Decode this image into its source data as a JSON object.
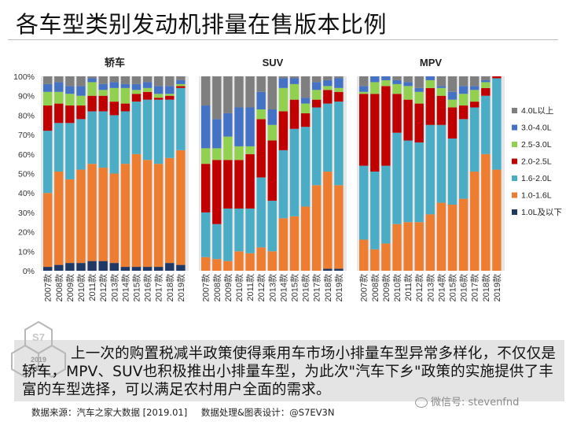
{
  "page_title": "各车型类别发动机排量在售版本比例",
  "note": "上一次的购置税减半政策使得乘用车市场小排量车型异常多样化，不仅仅是轿车，MPV、SUV也积极推出小排量车型，为此次\"汽车下乡\"政策的实施提供了丰富的车型选择，可以满足农村用户全面的需求。",
  "source": "数据来源：汽车之家大数据 [2019.01]",
  "processing": "数据处理&图表设计：@S7EV3N",
  "watermark": "微信号: stevenfnd",
  "seal": {
    "year": "2019",
    "date": "0129"
  },
  "colors": {
    "4.0L以上": "#7f7f7f",
    "3.0-4.0L": "#4472c4",
    "2.5-3.0L": "#92d050",
    "2.0-2.5L": "#c00000",
    "1.6-2.0L": "#4bacc6",
    "1.0-1.6L": "#ed7d31",
    "1.0L及以下": "#1f3864"
  },
  "chart_data": {
    "type": "bar",
    "stacked": true,
    "ylim": [
      0,
      100
    ],
    "yticks": [
      "0%",
      "10%",
      "20%",
      "30%",
      "40%",
      "50%",
      "60%",
      "70%",
      "80%",
      "90%",
      "100%"
    ],
    "categories": [
      "2007款",
      "2008款",
      "2009款",
      "2010款",
      "2011款",
      "2012款",
      "2013款",
      "2014款",
      "2015款",
      "2016款",
      "2017款",
      "2018款",
      "2019款"
    ],
    "legend": [
      "4.0L以上",
      "3.0-4.0L",
      "2.5-3.0L",
      "2.0-2.5L",
      "1.6-2.0L",
      "1.0-1.6L",
      "1.0L及以下"
    ],
    "legend_position": "right",
    "panels": [
      {
        "name": "轿车",
        "series": [
          {
            "name": "1.0L及以下",
            "values": [
              2,
              3,
              4,
              4,
              5,
              5,
              4,
              2,
              2,
              2,
              2,
              4,
              3
            ]
          },
          {
            "name": "1.0-1.6L",
            "values": [
              38,
              48,
              43,
              48,
              50,
              48,
              46,
              53,
              58,
              55,
              53,
              54,
              59
            ]
          },
          {
            "name": "1.6-2.0L",
            "values": [
              32,
              25,
              29,
              26,
              27,
              29,
              30,
              27,
              27,
              31,
              33,
              30,
              32
            ]
          },
          {
            "name": "2.0-2.5L",
            "values": [
              13,
              10,
              9,
              7,
              8,
              8,
              7,
              4,
              4,
              4,
              1,
              2,
              1
            ]
          },
          {
            "name": "2.5-3.0L",
            "values": [
              7,
              6,
              6,
              5,
              7,
              3,
              7,
              8,
              2,
              2,
              2,
              1,
              1
            ]
          },
          {
            "name": "3.0-4.0L",
            "values": [
              4,
              5,
              4,
              5,
              2,
              3,
              3,
              2,
              3,
              3,
              4,
              4,
              2
            ]
          },
          {
            "name": "4.0L以上",
            "values": [
              4,
              3,
              5,
              5,
              1,
              4,
              3,
              4,
              4,
              3,
              5,
              5,
              2
            ]
          }
        ]
      },
      {
        "name": "SUV",
        "series": [
          {
            "name": "1.0L及以下",
            "values": [
              0,
              0,
              0,
              0,
              0,
              0,
              0,
              0,
              0,
              0,
              0,
              1,
              1
            ]
          },
          {
            "name": "1.0-1.6L",
            "values": [
              7,
              6,
              5,
              10,
              9,
              12,
              10,
              27,
              28,
              33,
              44,
              50,
              43
            ]
          },
          {
            "name": "1.6-2.0L",
            "values": [
              23,
              18,
              27,
              22,
              23,
              36,
              26,
              35,
              45,
              41,
              40,
              35,
              43
            ]
          },
          {
            "name": "2.0-2.5L",
            "values": [
              25,
              33,
              25,
              25,
              28,
              30,
              31,
              20,
              15,
              7,
              4,
              7,
              5
            ]
          },
          {
            "name": "2.5-3.0L",
            "values": [
              8,
              6,
              12,
              7,
              4,
              5,
              8,
              12,
              8,
              5,
              5,
              2,
              2
            ]
          },
          {
            "name": "3.0-4.0L",
            "values": [
              22,
              15,
              12,
              20,
              20,
              9,
              8,
              5,
              3,
              3,
              4,
              3,
              5
            ]
          },
          {
            "name": "4.0L以上",
            "values": [
              15,
              22,
              19,
              16,
              16,
              8,
              17,
              1,
              1,
              11,
              3,
              2,
              1
            ]
          }
        ]
      },
      {
        "name": "MPV",
        "series": [
          {
            "name": "1.0L及以下",
            "values": [
              0,
              0,
              0,
              0,
              0,
              0,
              0,
              0,
              0,
              0,
              0,
              0,
              0
            ]
          },
          {
            "name": "1.0-1.6L",
            "values": [
              16,
              11,
              14,
              24,
              25,
              25,
              29,
              35,
              34,
              37,
              51,
              60,
              52
            ]
          },
          {
            "name": "1.6-2.0L",
            "values": [
              38,
              40,
              40,
              47,
              42,
              41,
              46,
              40,
              34,
              41,
              33,
              30,
              47
            ]
          },
          {
            "name": "2.0-2.5L",
            "values": [
              37,
              40,
              41,
              20,
              21,
              20,
              19,
              15,
              16,
              7,
              3,
              4,
              1
            ]
          },
          {
            "name": "2.5-3.0L",
            "values": [
              1,
              6,
              3,
              5,
              7,
              6,
              4,
              4,
              4,
              6,
              6,
              3,
              0
            ]
          },
          {
            "name": "3.0-4.0L",
            "values": [
              3,
              3,
              2,
              2,
              2,
              2,
              2,
              1,
              4,
              4,
              2,
              1,
              0
            ]
          },
          {
            "name": "4.0L以上",
            "values": [
              5,
              0,
              0,
              2,
              3,
              6,
              0,
              5,
              8,
              5,
              5,
              2,
              0
            ]
          }
        ]
      }
    ]
  }
}
